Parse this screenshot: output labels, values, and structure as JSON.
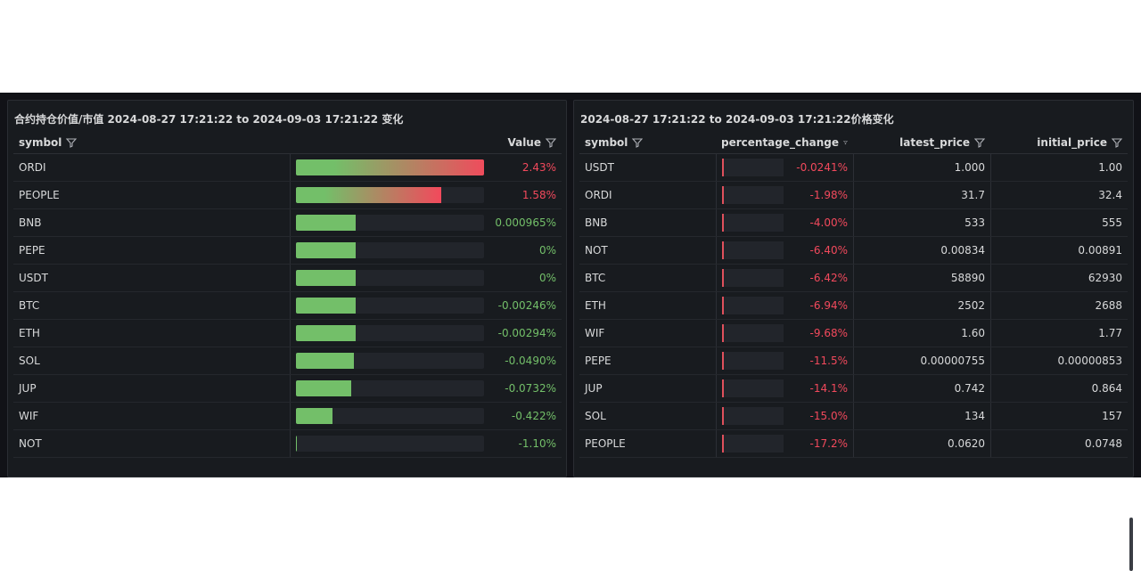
{
  "colors": {
    "positive": "#73bf69",
    "negative": "#f2495c",
    "bg": "#111217",
    "panel": "#181b1f"
  },
  "left_panel": {
    "title": "合约持仓价值/市值 2024-08-27 17:21:22 to 2024-09-03 17:21:22 变化",
    "columns": {
      "symbol": "symbol",
      "value": "Value"
    },
    "rows": [
      {
        "symbol": "ORDI",
        "value": "2.43%",
        "fill": 1.0,
        "sign": "pos_gradient"
      },
      {
        "symbol": "PEOPLE",
        "value": "1.58%",
        "fill": 0.76,
        "sign": "pos_gradient"
      },
      {
        "symbol": "BNB",
        "value": "0.000965%",
        "fill": 0.31,
        "sign": "pos"
      },
      {
        "symbol": "PEPE",
        "value": "0%",
        "fill": 0.31,
        "sign": "pos"
      },
      {
        "symbol": "USDT",
        "value": "0%",
        "fill": 0.31,
        "sign": "pos"
      },
      {
        "symbol": "BTC",
        "value": "-0.00246%",
        "fill": 0.31,
        "sign": "pos"
      },
      {
        "symbol": "ETH",
        "value": "-0.00294%",
        "fill": 0.31,
        "sign": "pos"
      },
      {
        "symbol": "SOL",
        "value": "-0.0490%",
        "fill": 0.3,
        "sign": "pos"
      },
      {
        "symbol": "JUP",
        "value": "-0.0732%",
        "fill": 0.29,
        "sign": "pos"
      },
      {
        "symbol": "WIF",
        "value": "-0.422%",
        "fill": 0.19,
        "sign": "pos"
      },
      {
        "symbol": "NOT",
        "value": "-1.10%",
        "fill": 0.0,
        "sign": "pos"
      }
    ]
  },
  "right_panel": {
    "title": "2024-08-27 17:21:22 to 2024-09-03 17:21:22价格变化",
    "columns": {
      "symbol": "symbol",
      "percentage_change": "percentage_change",
      "latest_price": "latest_price",
      "initial_price": "initial_price"
    },
    "rows": [
      {
        "symbol": "USDT",
        "percentage_change": "-0.0241%",
        "latest_price": "1.000",
        "initial_price": "1.00"
      },
      {
        "symbol": "ORDI",
        "percentage_change": "-1.98%",
        "latest_price": "31.7",
        "initial_price": "32.4"
      },
      {
        "symbol": "BNB",
        "percentage_change": "-4.00%",
        "latest_price": "533",
        "initial_price": "555"
      },
      {
        "symbol": "NOT",
        "percentage_change": "-6.40%",
        "latest_price": "0.00834",
        "initial_price": "0.00891"
      },
      {
        "symbol": "BTC",
        "percentage_change": "-6.42%",
        "latest_price": "58890",
        "initial_price": "62930"
      },
      {
        "symbol": "ETH",
        "percentage_change": "-6.94%",
        "latest_price": "2502",
        "initial_price": "2688"
      },
      {
        "symbol": "WIF",
        "percentage_change": "-9.68%",
        "latest_price": "1.60",
        "initial_price": "1.77"
      },
      {
        "symbol": "PEPE",
        "percentage_change": "-11.5%",
        "latest_price": "0.00000755",
        "initial_price": "0.00000853"
      },
      {
        "symbol": "JUP",
        "percentage_change": "-14.1%",
        "latest_price": "0.742",
        "initial_price": "0.864"
      },
      {
        "symbol": "SOL",
        "percentage_change": "-15.0%",
        "latest_price": "134",
        "initial_price": "157"
      },
      {
        "symbol": "PEOPLE",
        "percentage_change": "-17.2%",
        "latest_price": "0.0620",
        "initial_price": "0.0748"
      }
    ]
  }
}
